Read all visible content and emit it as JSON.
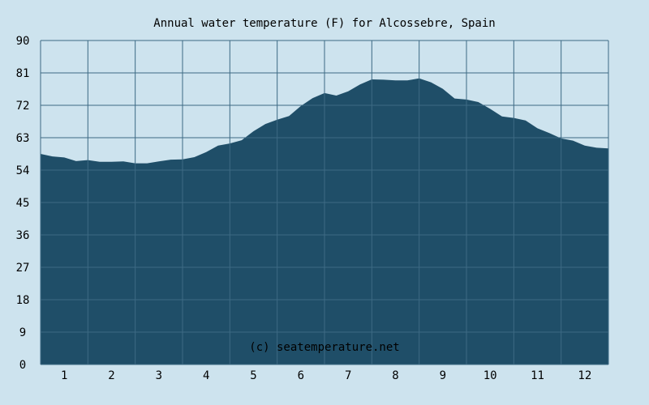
{
  "colors": {
    "background": "#cde3ee",
    "plot_background": "#cde3ee",
    "area_fill": "#1f4e68",
    "grid": "#3d6a84",
    "text": "#000000",
    "watermark_text": "#ffffff"
  },
  "chart_data": {
    "type": "area",
    "title": "Annual water temperature (F) for Alcossebre, Spain",
    "xlabel": "",
    "ylabel": "",
    "watermark": "(c) seatemperature.net",
    "ylim": [
      0,
      90
    ],
    "xlim": [
      0.5,
      12.5
    ],
    "y_ticks": [
      "0",
      "9",
      "18",
      "27",
      "36",
      "45",
      "54",
      "63",
      "72",
      "81",
      "90"
    ],
    "x_ticks": [
      "1",
      "2",
      "3",
      "4",
      "5",
      "6",
      "7",
      "8",
      "9",
      "10",
      "11",
      "12"
    ],
    "grid": true,
    "legend": "none",
    "series": [
      {
        "x": [
          0.5,
          0.75,
          1.0,
          1.25,
          1.5,
          1.75,
          2.0,
          2.25,
          2.5,
          2.75,
          3.0,
          3.25,
          3.5,
          3.75,
          4.0,
          4.25,
          4.5,
          4.75,
          5.0,
          5.25,
          5.5,
          5.75,
          6.0,
          6.25,
          6.5,
          6.75,
          7.0,
          7.25,
          7.5,
          7.75,
          8.0,
          8.25,
          8.5,
          8.75,
          9.0,
          9.25,
          9.5,
          9.75,
          10.0,
          10.25,
          10.5,
          10.75,
          11.0,
          11.25,
          11.5,
          11.75,
          12.0,
          12.25,
          12.5
        ],
        "values": [
          58.5,
          57.8,
          57.5,
          56.5,
          56.8,
          56.3,
          56.3,
          56.4,
          55.9,
          55.9,
          56.4,
          56.9,
          57.0,
          57.6,
          59.0,
          60.8,
          61.4,
          62.3,
          64.8,
          66.8,
          68.0,
          69.0,
          71.8,
          74.0,
          75.4,
          74.7,
          75.9,
          77.8,
          79.2,
          79.1,
          78.9,
          78.9,
          79.5,
          78.4,
          76.6,
          73.9,
          73.6,
          72.9,
          71.0,
          68.9,
          68.5,
          67.8,
          65.6,
          64.3,
          62.8,
          62.2,
          60.8,
          60.2,
          60.0
        ]
      }
    ]
  }
}
